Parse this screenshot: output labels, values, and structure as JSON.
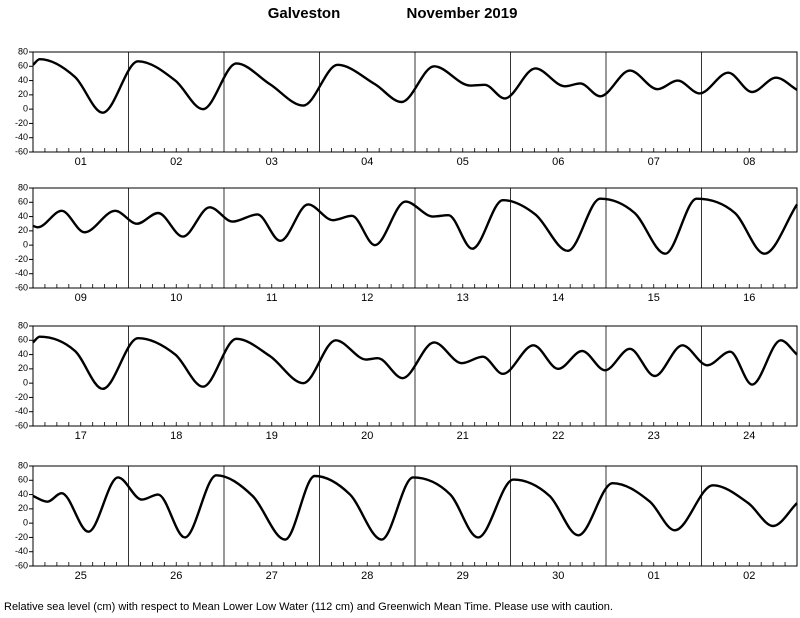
{
  "title": "Galveston",
  "subtitle": "November 2019",
  "note": "Relative sea level (cm) with respect to Mean Lower Low Water (112 cm) and Greenwich Mean Time. Please use with caution.",
  "chart_data": [
    {
      "type": "line",
      "color": "#000000",
      "categories": [
        "01",
        "02",
        "03",
        "04",
        "05",
        "06",
        "07",
        "08"
      ],
      "xlim": [
        0,
        8
      ],
      "ylim": [
        -60,
        80
      ],
      "yticks": [
        -60,
        -40,
        -20,
        0,
        20,
        40,
        60,
        80
      ],
      "x": [
        0,
        0.07,
        0.44,
        0.73,
        1.1,
        1.49,
        1.78,
        2.13,
        2.48,
        2.83,
        3.19,
        3.58,
        3.86,
        4.2,
        4.58,
        4.73,
        4.94,
        5.26,
        5.57,
        5.73,
        5.94,
        6.25,
        6.54,
        6.75,
        6.98,
        7.28,
        7.53,
        7.78,
        8
      ],
      "values": [
        62,
        70,
        45,
        -5,
        67,
        40,
        0,
        64,
        35,
        5,
        62,
        35,
        10,
        60,
        33,
        34,
        15,
        57,
        32,
        36,
        18,
        54,
        28,
        40,
        22,
        51,
        24,
        44,
        27
      ]
    },
    {
      "type": "line",
      "color": "#000000",
      "categories": [
        "09",
        "10",
        "11",
        "12",
        "13",
        "14",
        "15",
        "16"
      ],
      "xlim": [
        0,
        8
      ],
      "ylim": [
        -60,
        80
      ],
      "yticks": [
        -60,
        -40,
        -20,
        0,
        20,
        40,
        60,
        80
      ],
      "x": [
        0,
        0.05,
        0.3,
        0.54,
        0.86,
        1.09,
        1.31,
        1.57,
        1.85,
        2.09,
        2.35,
        2.59,
        2.88,
        3.14,
        3.34,
        3.58,
        3.9,
        4.19,
        4.35,
        4.6,
        4.92,
        5.26,
        5.6,
        5.94,
        6.3,
        6.62,
        6.95,
        7.35,
        7.66,
        8
      ],
      "values": [
        27,
        25,
        48,
        18,
        48,
        30,
        45,
        12,
        53,
        33,
        43,
        6,
        57,
        35,
        41,
        0,
        61,
        40,
        42,
        -5,
        63,
        43,
        -8,
        65,
        45,
        -12,
        65,
        45,
        -12,
        57
      ]
    },
    {
      "type": "line",
      "color": "#000000",
      "categories": [
        "17",
        "18",
        "19",
        "20",
        "21",
        "22",
        "23",
        "24"
      ],
      "xlim": [
        0,
        8
      ],
      "ylim": [
        -60,
        80
      ],
      "yticks": [
        -60,
        -40,
        -20,
        0,
        20,
        40,
        60,
        80
      ],
      "x": [
        0,
        0.07,
        0.44,
        0.73,
        1.1,
        1.49,
        1.78,
        2.13,
        2.48,
        2.83,
        3.17,
        3.49,
        3.61,
        3.87,
        4.2,
        4.49,
        4.71,
        4.92,
        5.24,
        5.5,
        5.75,
        5.99,
        6.25,
        6.51,
        6.8,
        7.06,
        7.3,
        7.53,
        7.83,
        8
      ],
      "values": [
        57,
        65,
        45,
        -8,
        63,
        40,
        -5,
        62,
        38,
        0,
        60,
        33,
        35,
        7,
        57,
        28,
        37,
        13,
        53,
        20,
        45,
        18,
        48,
        10,
        53,
        25,
        44,
        -2,
        60,
        40
      ]
    },
    {
      "type": "line",
      "color": "#000000",
      "categories": [
        "25",
        "26",
        "27",
        "28",
        "29",
        "30",
        "01",
        "02"
      ],
      "xlim": [
        0,
        8
      ],
      "ylim": [
        -60,
        80
      ],
      "yticks": [
        -60,
        -40,
        -20,
        0,
        20,
        40,
        60,
        80
      ],
      "x": [
        0,
        0.15,
        0.3,
        0.58,
        0.89,
        1.14,
        1.31,
        1.59,
        1.92,
        2.3,
        2.64,
        2.95,
        3.32,
        3.65,
        3.98,
        4.37,
        4.66,
        5.03,
        5.41,
        5.71,
        6.07,
        6.46,
        6.72,
        7.12,
        7.49,
        7.75,
        8
      ],
      "values": [
        38,
        30,
        42,
        -12,
        64,
        33,
        40,
        -20,
        67,
        38,
        -23,
        66,
        40,
        -23,
        64,
        40,
        -20,
        61,
        38,
        -17,
        56,
        30,
        -10,
        53,
        28,
        -4,
        28
      ]
    }
  ]
}
